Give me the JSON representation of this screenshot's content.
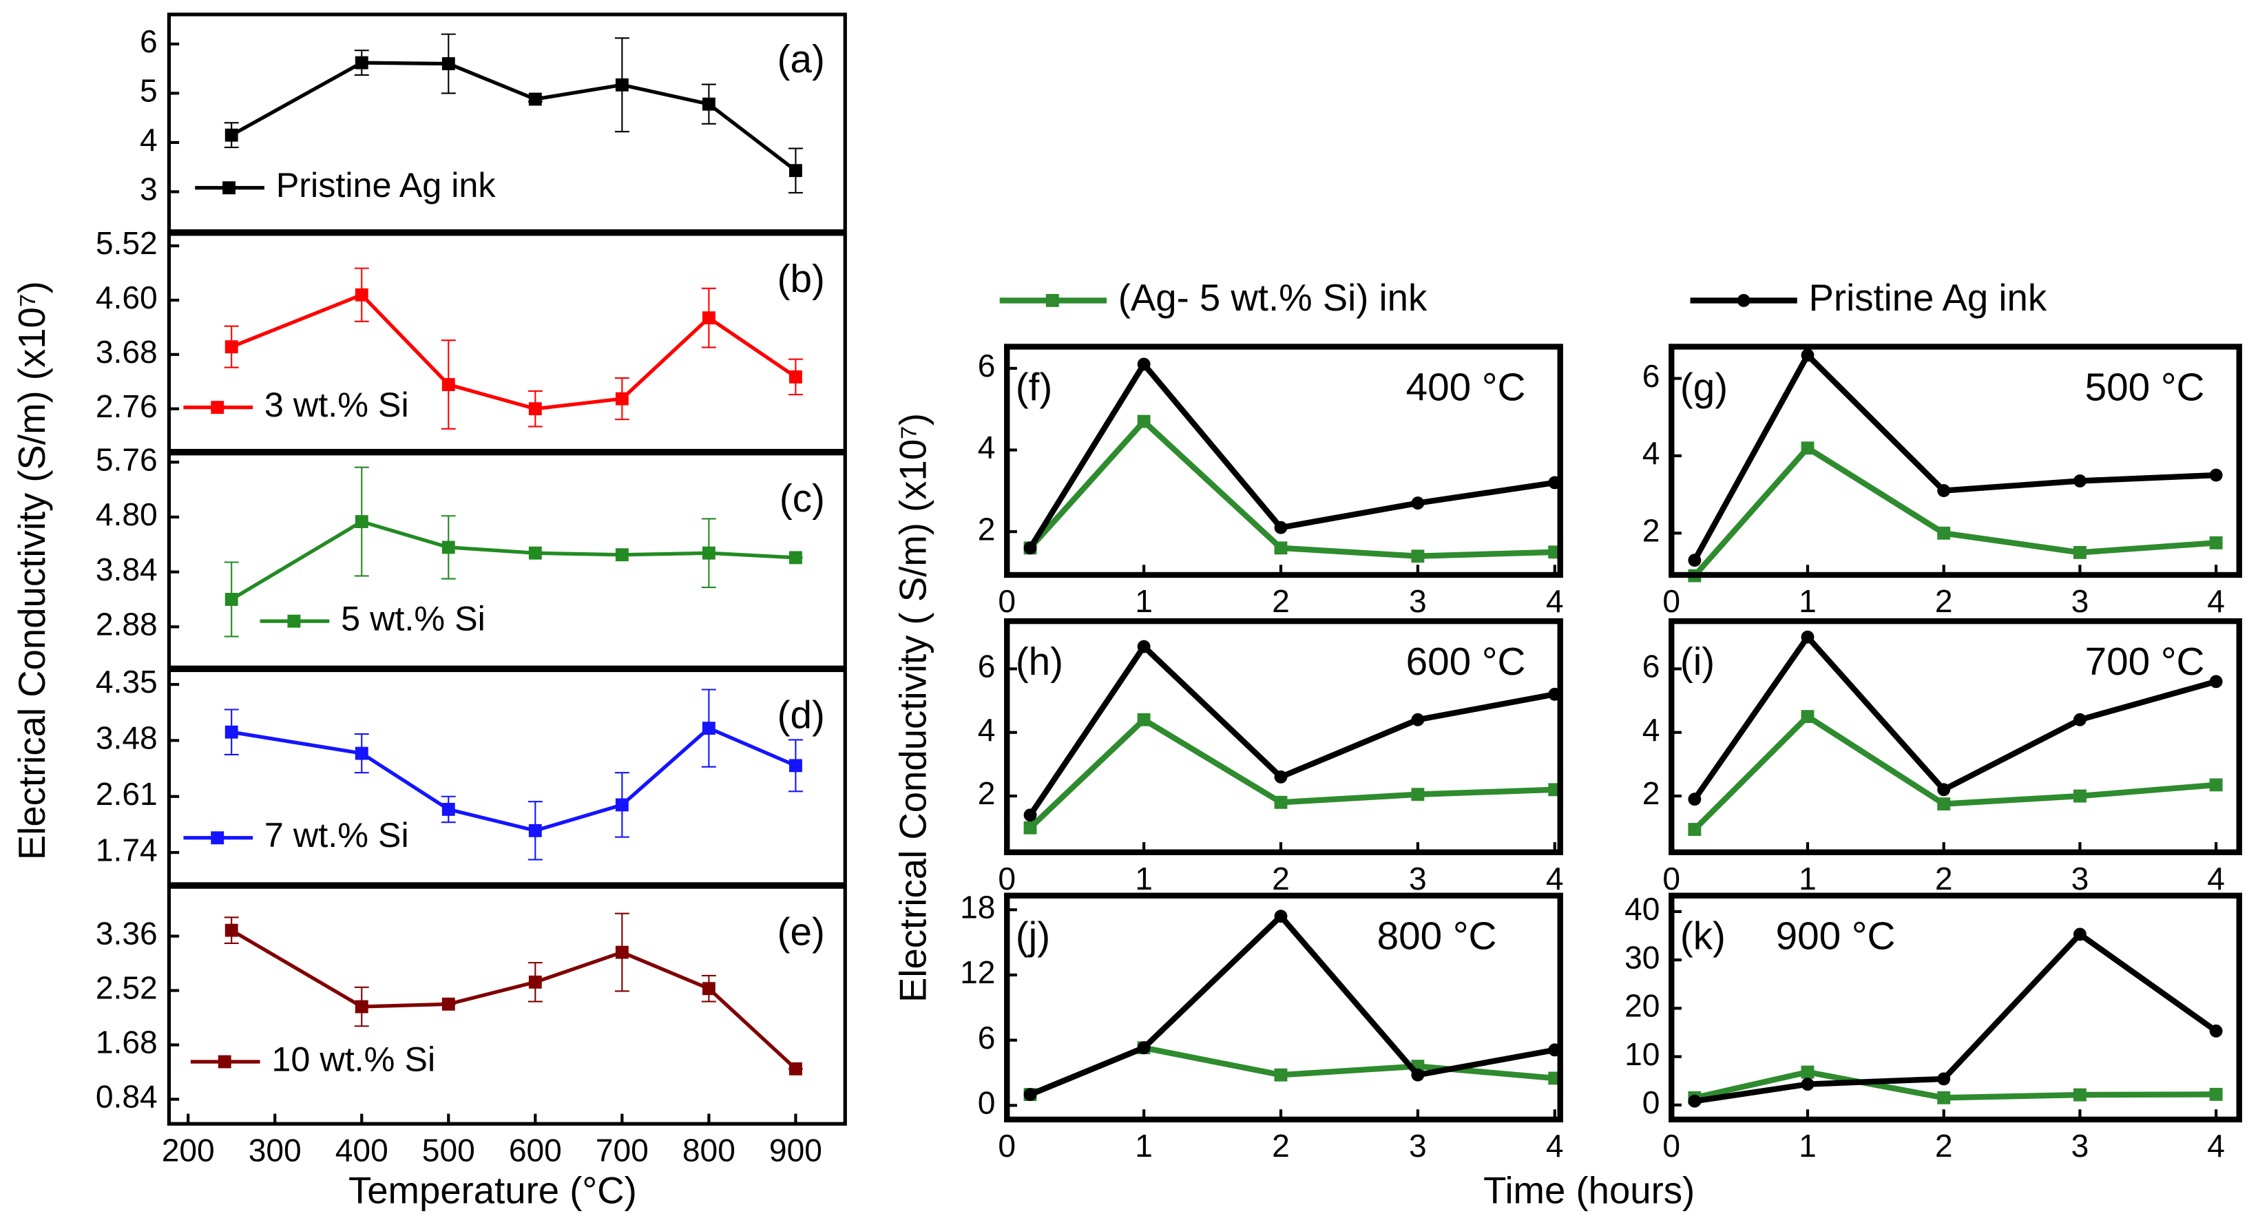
{
  "labels": {
    "left_ylabel": "Electrical Conductivity (S/m) (x10⁷)",
    "left_xlabel": "Temperature (°C)",
    "right_ylabel": "Electrical Conductivity ( S/m) (x10⁷)",
    "right_xlabel": "Time (hours)"
  },
  "chart_data": [
    {
      "type": "line",
      "panel": "(a)",
      "x": [
        250,
        400,
        500,
        600,
        700,
        800,
        900
      ],
      "xlim": [
        178,
        957
      ],
      "ylim": [
        2.2,
        6.6
      ],
      "yticks": [
        3,
        4,
        5,
        6
      ],
      "series": [
        {
          "name": "Pristine Ag ink",
          "color": "#000000",
          "values": [
            4.15,
            5.62,
            5.6,
            4.88,
            5.17,
            4.78,
            3.43
          ],
          "errors": [
            0.25,
            0.25,
            0.6,
            0.05,
            0.95,
            0.4,
            0.45
          ]
        }
      ]
    },
    {
      "type": "line",
      "panel": "(b)",
      "x": [
        250,
        400,
        500,
        600,
        700,
        800,
        900
      ],
      "xlim": [
        178,
        957
      ],
      "ylim": [
        2.05,
        5.72
      ],
      "yticks": [
        2.76,
        3.68,
        {
          "value": 4.6,
          "label": "4.60"
        },
        5.52
      ],
      "series": [
        {
          "name": "3 wt.% Si",
          "color": "#ff0000",
          "values": [
            3.81,
            4.69,
            3.17,
            2.76,
            2.93,
            4.3,
            3.3
          ],
          "errors": [
            0.35,
            0.45,
            0.75,
            0.3,
            0.35,
            0.5,
            0.3
          ]
        }
      ]
    },
    {
      "type": "line",
      "panel": "(c)",
      "x": [
        250,
        400,
        500,
        600,
        700,
        800,
        900
      ],
      "xlim": [
        178,
        957
      ],
      "ylim": [
        2.17,
        5.91
      ],
      "yticks": [
        2.88,
        3.84,
        {
          "value": 4.8,
          "label": "4.80"
        },
        5.76
      ],
      "series": [
        {
          "name": "5 wt.% Si",
          "color": "#228b22",
          "values": [
            3.36,
            4.72,
            4.27,
            4.17,
            4.14,
            4.17,
            4.09
          ],
          "errors": [
            0.65,
            0.95,
            0.55,
            0,
            0,
            0.6,
            0
          ]
        }
      ]
    },
    {
      "type": "line",
      "panel": "(d)",
      "x": [
        250,
        400,
        500,
        600,
        700,
        800,
        900
      ],
      "xlim": [
        178,
        957
      ],
      "ylim": [
        1.25,
        4.57
      ],
      "yticks": [
        1.74,
        2.61,
        3.48,
        4.35
      ],
      "series": [
        {
          "name": "7 wt.% Si",
          "color": "#1414ff",
          "values": [
            3.61,
            3.28,
            2.41,
            2.08,
            2.48,
            3.67,
            3.09
          ],
          "errors": [
            0.35,
            0.3,
            0.2,
            0.45,
            0.5,
            0.6,
            0.4
          ]
        }
      ]
    },
    {
      "type": "line",
      "panel": "(e)",
      "x": [
        250,
        400,
        500,
        600,
        700,
        800,
        900
      ],
      "xlim": [
        178,
        957
      ],
      "ylim": [
        0.46,
        4.12
      ],
      "yticks": [
        0.84,
        1.68,
        2.52,
        3.36
      ],
      "xticks": [
        200,
        300,
        400,
        500,
        600,
        700,
        800,
        900
      ],
      "series": [
        {
          "name": "10 wt.% Si",
          "color": "#800000",
          "values": [
            3.45,
            2.27,
            2.31,
            2.65,
            3.11,
            2.55,
            1.31
          ],
          "errors": [
            0.2,
            0.3,
            0,
            0.3,
            0.6,
            0.2,
            0
          ]
        }
      ]
    },
    {
      "type": "line",
      "panel": "(f)",
      "annotation": "400 °C",
      "x": [
        0.17,
        1,
        2,
        3,
        4
      ],
      "xlim": [
        0,
        4.04
      ],
      "ylim": [
        0.94,
        6.53
      ],
      "xticks": [
        0,
        1,
        2,
        3,
        4
      ],
      "yticks": [
        2,
        4,
        6
      ],
      "series": [
        {
          "name": "(Ag- 5 wt.% Si) ink",
          "color": "#2e8b2e",
          "values": [
            1.6,
            4.7,
            1.6,
            1.4,
            1.5
          ]
        },
        {
          "name": "Pristine Ag ink",
          "color": "#000000",
          "values": [
            1.6,
            6.1,
            2.1,
            2.7,
            3.2
          ]
        }
      ]
    },
    {
      "type": "line",
      "panel": "(g)",
      "annotation": "500 °C",
      "x": [
        0.17,
        1,
        2,
        3,
        4
      ],
      "xlim": [
        0,
        4.17
      ],
      "ylim": [
        0.92,
        6.82
      ],
      "xticks": [
        0,
        1,
        2,
        3,
        4
      ],
      "yticks": [
        2,
        4,
        6
      ],
      "series": [
        {
          "color": "#2e8b2e",
          "values": [
            0.9,
            4.2,
            2.0,
            1.5,
            1.75
          ]
        },
        {
          "color": "#000000",
          "values": [
            1.3,
            6.6,
            3.1,
            3.35,
            3.5
          ]
        }
      ]
    },
    {
      "type": "line",
      "panel": "(h)",
      "annotation": "600 °C",
      "x": [
        0.17,
        1,
        2,
        3,
        4
      ],
      "xlim": [
        0,
        4.04
      ],
      "ylim": [
        0.23,
        7.5
      ],
      "xticks": [
        0,
        1,
        2,
        3,
        4
      ],
      "yticks": [
        2,
        4,
        6
      ],
      "series": [
        {
          "color": "#2e8b2e",
          "values": [
            1.0,
            4.4,
            1.8,
            2.05,
            2.2
          ]
        },
        {
          "color": "#000000",
          "values": [
            1.4,
            6.7,
            2.6,
            4.4,
            5.2
          ]
        }
      ]
    },
    {
      "type": "line",
      "panel": "(i)",
      "annotation": "700 °C",
      "x": [
        0.17,
        1,
        2,
        3,
        4
      ],
      "xlim": [
        0,
        4.17
      ],
      "ylim": [
        0.23,
        7.5
      ],
      "xticks": [
        0,
        1,
        2,
        3,
        4
      ],
      "yticks": [
        2,
        4,
        6
      ],
      "series": [
        {
          "color": "#2e8b2e",
          "values": [
            0.95,
            4.5,
            1.75,
            2.0,
            2.35
          ]
        },
        {
          "color": "#000000",
          "values": [
            1.9,
            7.0,
            2.2,
            4.4,
            5.6
          ]
        }
      ]
    },
    {
      "type": "line",
      "panel": "(j)",
      "annotation": "800 °C",
      "x": [
        0.17,
        1,
        2,
        3,
        4
      ],
      "xlim": [
        0,
        4.04
      ],
      "ylim": [
        -1.3,
        19.3
      ],
      "xticks": [
        0,
        1,
        2,
        3,
        4
      ],
      "yticks": [
        0,
        6,
        12,
        18
      ],
      "series": [
        {
          "color": "#2e8b2e",
          "values": [
            1.0,
            5.3,
            2.8,
            3.6,
            2.5
          ]
        },
        {
          "color": "#000000",
          "values": [
            1.0,
            5.3,
            17.4,
            2.8,
            5.1
          ]
        }
      ]
    },
    {
      "type": "line",
      "panel": "(k)",
      "annotation": "900 °C",
      "x": [
        0.17,
        1,
        2,
        3,
        4
      ],
      "xlim": [
        0,
        4.17
      ],
      "ylim": [
        -3,
        43.3
      ],
      "xticks": [
        0,
        1,
        2,
        3,
        4
      ],
      "yticks": [
        0,
        10,
        20,
        30,
        40
      ],
      "series": [
        {
          "color": "#2e8b2e",
          "values": [
            1.5,
            6.8,
            1.5,
            2.1,
            2.2
          ]
        },
        {
          "color": "#000000",
          "values": [
            0.8,
            4.3,
            5.4,
            35.3,
            15.3
          ]
        }
      ]
    }
  ]
}
